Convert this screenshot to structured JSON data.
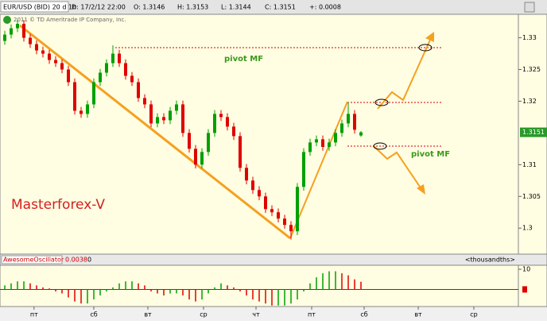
{
  "header": {
    "symbol": "EUR/USD (BID) 20 d 1h",
    "date": "D: 17/2/12 22:00",
    "open": "O: 1.3146",
    "high": "H: 1.3153",
    "low": "L: 1.3144",
    "close": "C: 1.3151",
    "change": "+: 0.0008",
    "copyright": "2011 © TD Ameritrade IP Company, Inc."
  },
  "chart_data": [
    {
      "type": "candlestick",
      "open": [
        1.3295,
        1.3305,
        1.3315,
        1.3322,
        1.33,
        1.329,
        1.328,
        1.3275,
        1.3265,
        1.326,
        1.325,
        1.323,
        1.3185,
        1.318,
        1.3195,
        1.323,
        1.3245,
        1.326,
        1.3275,
        1.326,
        1.324,
        1.323,
        1.3205,
        1.3195,
        1.3165,
        1.3175,
        1.317,
        1.3185,
        1.3195,
        1.315,
        1.3125,
        1.31,
        1.312,
        1.315,
        1.318,
        1.3175,
        1.316,
        1.3145,
        1.3095,
        1.3075,
        1.306,
        1.305,
        1.303,
        1.3025,
        1.3015,
        1.3005,
        1.2995,
        1.3065,
        1.312,
        1.3135,
        1.314,
        1.3128,
        1.3135,
        1.315,
        1.3165,
        1.318,
        1.3146
      ],
      "high": [
        1.3311,
        1.3321,
        1.3328,
        1.3328,
        1.3306,
        1.3296,
        1.3286,
        1.3281,
        1.3271,
        1.3266,
        1.3256,
        1.3236,
        1.3191,
        1.3201,
        1.3236,
        1.3251,
        1.3266,
        1.3288,
        1.3281,
        1.3266,
        1.3246,
        1.3236,
        1.3211,
        1.3201,
        1.3181,
        1.3181,
        1.3191,
        1.3201,
        1.3201,
        1.3156,
        1.3131,
        1.3126,
        1.3156,
        1.3186,
        1.3186,
        1.3181,
        1.3166,
        1.3151,
        1.3101,
        1.3081,
        1.3066,
        1.3056,
        1.3036,
        1.3031,
        1.3021,
        1.3011,
        1.3071,
        1.3126,
        1.3141,
        1.3146,
        1.3146,
        1.3141,
        1.3156,
        1.3171,
        1.3198,
        1.3186,
        1.3153
      ],
      "low": [
        1.3289,
        1.3299,
        1.3309,
        1.3294,
        1.3284,
        1.3274,
        1.3269,
        1.3259,
        1.3254,
        1.3244,
        1.3224,
        1.3179,
        1.3174,
        1.3174,
        1.3189,
        1.3224,
        1.3239,
        1.3254,
        1.3254,
        1.3234,
        1.3224,
        1.3199,
        1.3189,
        1.3159,
        1.3159,
        1.3164,
        1.3164,
        1.3179,
        1.3144,
        1.3119,
        1.3094,
        1.3094,
        1.3114,
        1.3144,
        1.3169,
        1.3154,
        1.3139,
        1.3089,
        1.3069,
        1.3054,
        1.3044,
        1.3024,
        1.3019,
        1.3009,
        1.2999,
        1.2982,
        1.2989,
        1.3059,
        1.3114,
        1.3129,
        1.3122,
        1.3122,
        1.3129,
        1.3144,
        1.3159,
        1.3149,
        1.3144
      ],
      "close": [
        1.3305,
        1.3315,
        1.3322,
        1.33,
        1.329,
        1.328,
        1.3275,
        1.3265,
        1.326,
        1.325,
        1.323,
        1.3185,
        1.318,
        1.3195,
        1.323,
        1.3245,
        1.326,
        1.3275,
        1.326,
        1.324,
        1.323,
        1.3205,
        1.3195,
        1.3165,
        1.3175,
        1.317,
        1.3185,
        1.3195,
        1.315,
        1.3125,
        1.31,
        1.312,
        1.315,
        1.318,
        1.3175,
        1.316,
        1.3145,
        1.3095,
        1.3075,
        1.306,
        1.305,
        1.303,
        1.3025,
        1.3015,
        1.3005,
        1.2995,
        1.3065,
        1.312,
        1.3135,
        1.314,
        1.3128,
        1.3135,
        1.315,
        1.3165,
        1.318,
        1.3155,
        1.3151
      ],
      "ylim": [
        1.2959,
        1.3337
      ],
      "yticks": [
        1.3,
        1.305,
        1.31,
        1.32,
        1.325,
        1.33
      ],
      "colors": {
        "up": "#00a000",
        "down": "#e00000"
      },
      "annotations": [
        "pivot MF",
        "pivot MF",
        "Masterforex-V"
      ]
    },
    {
      "type": "bar",
      "title": "AwesomeOscillator",
      "value_text": "0.0038",
      "period": "0",
      "units": "<thousandths>",
      "values": [
        2,
        3,
        4,
        4,
        3,
        2,
        1,
        0.5,
        -1,
        -2,
        -4,
        -6,
        -7,
        -7,
        -5,
        -3,
        -1,
        1,
        3,
        4,
        4,
        3,
        2,
        -1,
        -2,
        -3,
        -2,
        -2,
        -3,
        -5,
        -6,
        -5,
        -2,
        1,
        3,
        2,
        1,
        -1,
        -3,
        -5,
        -6,
        -7,
        -8,
        -8,
        -8,
        -7,
        -5,
        -1,
        3,
        6,
        8,
        9,
        9,
        8,
        7,
        5,
        3.8
      ],
      "ylim": [
        -8.5,
        12
      ],
      "yticks": [
        10
      ],
      "colors": {
        "up": "#00a000",
        "down": "#e00000"
      },
      "xticks": [
        {
          "value": 4.6,
          "label": "пт"
        },
        {
          "value": 14,
          "label": "сб"
        },
        {
          "value": 22.5,
          "label": "вт"
        },
        {
          "value": 31.25,
          "label": "ср"
        },
        {
          "value": 39.5,
          "label": "чт"
        },
        {
          "value": 48.25,
          "label": "пт"
        },
        {
          "value": 56.5,
          "label": "сб"
        },
        {
          "value": 65,
          "label": "вт"
        },
        {
          "value": 73.75,
          "label": "ср"
        }
      ]
    }
  ]
}
